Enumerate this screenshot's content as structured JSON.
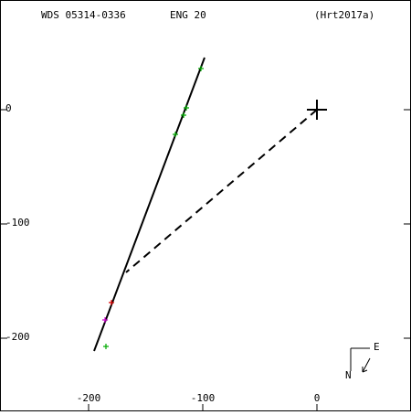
{
  "chart_data": {
    "type": "scatter",
    "title": "WDS 05314-0336",
    "subtitle": "ENG  20",
    "reference": "(Hrt2017a)",
    "xlim": [
      -277.6,
      82.4
    ],
    "ylim": [
      -264,
      96
    ],
    "xticks": [
      -200,
      -100,
      0
    ],
    "yticks": [
      0,
      -100,
      -200
    ],
    "series": [
      {
        "color": "#00aa00",
        "x": [
          -184.8,
          -124,
          -116.8,
          -114.4,
          -101.6
        ],
        "y": [
          -207.2,
          -21.6,
          -4.8,
          1.6,
          36
        ]
      },
      {
        "color": "#dd0000",
        "x": [
          -180
        ],
        "y": [
          -168.8
        ]
      },
      {
        "color": "#cc00cc",
        "x": [
          -185.6
        ],
        "y": [
          -184
        ]
      }
    ],
    "orbit": {
      "color": "#000000",
      "x": [
        -195.2,
        -98.4
      ],
      "y": [
        -211.2,
        45.6
      ]
    },
    "node_line": {
      "color": "#000000",
      "x": [
        0,
        -167.2
      ],
      "y": [
        0,
        -142.4
      ]
    },
    "primary": {
      "x": 0,
      "y": 0
    },
    "compass": {
      "north": "N",
      "east": "E"
    }
  }
}
